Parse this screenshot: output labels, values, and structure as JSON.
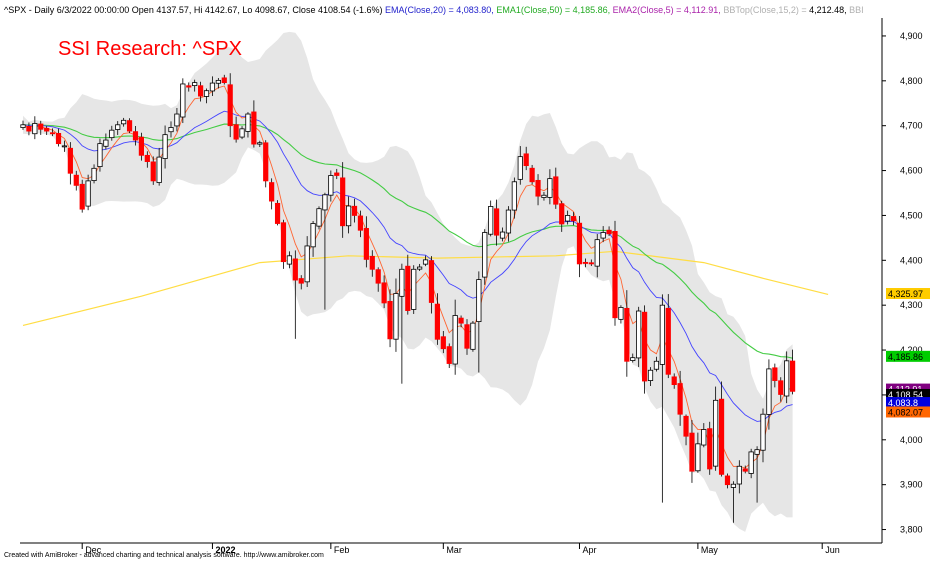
{
  "header": {
    "symbol": "^SPX",
    "text_prefix": " - Daily 6/3/2022 00:00:00 Open 4137.57, Hi 4142.67, Lo 4098.67, Close 4108.54 (-1.6%) ",
    "ema20": "EMA(Close,20) = 4,083.80,",
    "ema50": "EMA1(Close,50) = 4,185.86,",
    "ema5": "EMA2(Close,5) = 4,112.91,",
    "bbtop": "BBTop(Close,15,2) = ",
    "bbtop_value": "4,212.48,",
    "bbbot": "BBI"
  },
  "brand": "SSI Research: ^SPX",
  "credit": "Created with AmiBroker - advanced charting and technical analysis software. http://www.amibroker.com",
  "colors": {
    "up": "#000000",
    "down": "#ff0000",
    "ema20": "#4444ff",
    "ema50": "#44cc44",
    "ema5": "#ff6633",
    "ema200": "#ffdd44",
    "band": "#d9d9d9",
    "header_ema20": "#2222cc",
    "header_ema50": "#22aa22",
    "header_ema5": "#aa22aa",
    "header_bb": "#b0b0b0"
  },
  "chart_data": {
    "type": "candlestick",
    "y_axis": {
      "ticks": [
        3800,
        3900,
        4000,
        4100,
        4200,
        4300,
        4400,
        4500,
        4600,
        4700,
        4800,
        4900
      ],
      "tick_labels": [
        "3,800",
        "3,900",
        "4,000",
        "4,100",
        "4,200",
        "4,300",
        "4,400",
        "4,500",
        "4,600",
        "4,700",
        "4,800",
        "4,900"
      ],
      "range": [
        3770,
        4940
      ]
    },
    "x_axis": {
      "labels": [
        {
          "label": "Dec",
          "bar": 10
        },
        {
          "label": "2022",
          "bar": 32,
          "bold": true
        },
        {
          "label": "Feb",
          "bar": 52
        },
        {
          "label": "Mar",
          "bar": 71
        },
        {
          "label": "Apr",
          "bar": 94
        },
        {
          "label": "May",
          "bar": 114
        },
        {
          "label": "Jun",
          "bar": 135
        }
      ]
    },
    "value_tags": [
      {
        "label": "4,325.97",
        "value": 4326,
        "bg": "#ffcc00",
        "fg": "#000000"
      },
      {
        "label": "4,185.86",
        "value": 4186,
        "bg": "#00cc00",
        "fg": "#000000"
      },
      {
        "label": "4,112.91",
        "value": 4113,
        "bg": "#800080",
        "fg": "#ffffff"
      },
      {
        "label": "4,108.54",
        "value": 4101,
        "bg": "#000000",
        "fg": "#ffffff"
      },
      {
        "label": "4,083.8",
        "value": 4083,
        "bg": "#0000dd",
        "fg": "#ffffff"
      },
      {
        "label": "4,082.07",
        "value": 4062,
        "bg": "#ff6600",
        "fg": "#000000"
      }
    ],
    "series": [
      {
        "name": "EMA(Close,20)",
        "key": "ema20",
        "period": 20
      },
      {
        "name": "EMA1(Close,50)",
        "key": "ema50",
        "period": 50
      },
      {
        "name": "EMA2(Close,5)",
        "key": "ema5",
        "period": 5
      },
      {
        "name": "BBTop(Close,15,2)",
        "key": "bb",
        "period": 15
      }
    ],
    "ema200_path": [
      [
        0,
        4255
      ],
      [
        20,
        4320
      ],
      [
        40,
        4395
      ],
      [
        55,
        4410
      ],
      [
        70,
        4405
      ],
      [
        90,
        4410
      ],
      [
        100,
        4420
      ],
      [
        115,
        4395
      ],
      [
        125,
        4360
      ],
      [
        136,
        4324
      ]
    ],
    "closes": [
      4702,
      4688,
      4705,
      4692,
      4688,
      4682,
      4660,
      4655,
      4594,
      4567,
      4514,
      4577,
      4605,
      4660,
      4668,
      4690,
      4702,
      4712,
      4688,
      4668,
      4634,
      4620,
      4577,
      4630,
      4680,
      4696,
      4726,
      4793,
      4786,
      4796,
      4766,
      4778,
      4795,
      4801,
      4796,
      4700,
      4670,
      4693,
      4726,
      4659,
      4662,
      4577,
      4532,
      4482,
      4397,
      4410,
      4356,
      4349,
      4432,
      4482,
      4515,
      4546,
      4589,
      4589,
      4477,
      4521,
      4500,
      4467,
      4402,
      4380,
      4349,
      4305,
      4225,
      4326,
      4380,
      4288,
      4380,
      4385,
      4401,
      4306,
      4224,
      4203,
      4170,
      4277,
      4260,
      4204,
      4260,
      4357,
      4462,
      4520,
      4456,
      4463,
      4512,
      4575,
      4631,
      4611,
      4575,
      4543,
      4545,
      4582,
      4525,
      4481,
      4500,
      4488,
      4392,
      4393,
      4392,
      4446,
      4462,
      4459,
      4272,
      4295,
      4175,
      4183,
      4287,
      4131,
      4155,
      4175,
      4300,
      4146,
      4123,
      4057,
      4008,
      3930,
      3991,
      4023,
      3935,
      4088,
      3923,
      3900,
      3901,
      3941,
      3930,
      3973,
      3978,
      4057,
      4158,
      4132,
      4101,
      4176,
      4108
    ]
  }
}
